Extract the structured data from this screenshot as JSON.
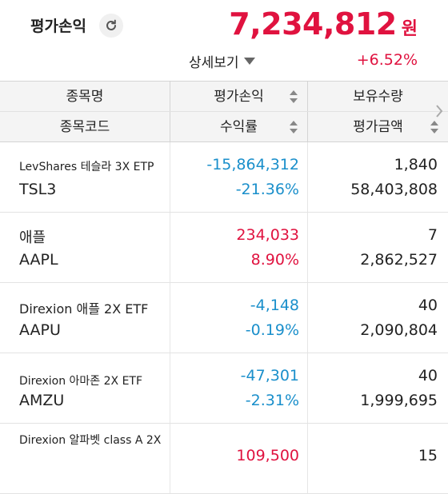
{
  "summary": {
    "label": "평가손익",
    "total_value": "7,234,812",
    "total_unit": "원",
    "detail_label": "상세보기",
    "total_rate": "+6.52%"
  },
  "table": {
    "headers": {
      "col1_top": "종목명",
      "col1_bottom": "종목코드",
      "col2_top": "평가손익",
      "col2_bottom": "수익률",
      "col3_top": "보유수량",
      "col3_bottom": "평가금액"
    },
    "rows": [
      {
        "name": "LevShares 테슬라 3X ETP",
        "code": "TSL3",
        "pl": "-15,864,312",
        "rate": "-21.36%",
        "qty": "1,840",
        "amount": "58,403,808",
        "sign": "neg"
      },
      {
        "name": "애플",
        "code": "AAPL",
        "pl": "234,033",
        "rate": "8.90%",
        "qty": "7",
        "amount": "2,862,527",
        "sign": "pos"
      },
      {
        "name": "Direxion 애플 2X ETF",
        "code": "AAPU",
        "pl": "-4,148",
        "rate": "-0.19%",
        "qty": "40",
        "amount": "2,090,804",
        "sign": "neg"
      },
      {
        "name": "Direxion 아마존 2X ETF",
        "code": "AMZU",
        "pl": "-47,301",
        "rate": "-2.31%",
        "qty": "40",
        "amount": "1,999,695",
        "sign": "neg"
      },
      {
        "name": "Direxion 알파벳 class A 2X",
        "code": "",
        "pl": "109,500",
        "rate": "",
        "qty": "15",
        "amount": "",
        "sign": "pos"
      }
    ]
  },
  "colors": {
    "positive": "#e0123f",
    "negative": "#1a8fcb"
  }
}
